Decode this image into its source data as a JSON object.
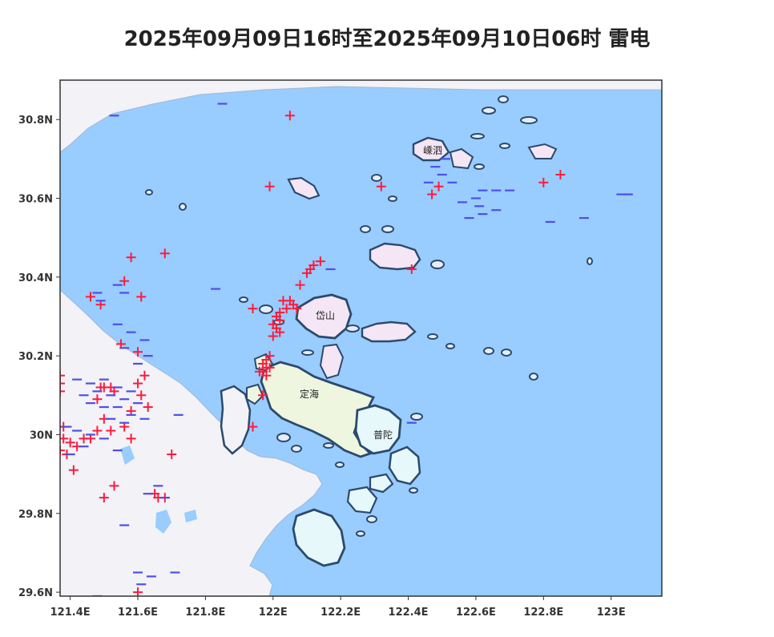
{
  "title": "2025年09月09日16时至2025年09月10日06时 雷电",
  "x_ticks": [
    "121.4E",
    "121.6E",
    "121.8E",
    "122E",
    "122.2E",
    "122.4E",
    "122.6E",
    "122.8E",
    "123E"
  ],
  "y_ticks": [
    "30.8N",
    "30.6N",
    "30.4N",
    "30.2N",
    "30N",
    "29.8N",
    "29.6N"
  ],
  "places": [
    "嵊泗",
    "岱山",
    "定海",
    "普陀"
  ],
  "colors": {
    "sea": "#99ccff",
    "land": "#f2f2f7",
    "island_daishan": "#f5e6f5",
    "island_zhoushan": "#eef6e0",
    "island_putuo": "#e6f8fa",
    "coast": "#2c4a6b",
    "positive_strike": "#ff1a3c",
    "negative_strike": "#4f4fe6"
  },
  "chart_data": {
    "type": "scatter",
    "title": "2025年09月09日16时至2025年09月10日06时 雷电",
    "xlim": [
      121.37,
      123.15
    ],
    "ylim": [
      29.59,
      30.9
    ],
    "series": [
      {
        "marker": "plus",
        "points": [
          [
            122.05,
            30.81
          ],
          [
            121.99,
            30.63
          ],
          [
            122.32,
            30.63
          ],
          [
            122.47,
            30.61
          ],
          [
            122.49,
            30.63
          ],
          [
            122.8,
            30.64
          ],
          [
            122.85,
            30.66
          ],
          [
            121.68,
            30.46
          ],
          [
            121.58,
            30.45
          ],
          [
            121.56,
            30.39
          ],
          [
            121.61,
            30.35
          ],
          [
            121.46,
            30.35
          ],
          [
            121.49,
            30.33
          ],
          [
            121.94,
            30.32
          ],
          [
            121.97,
            30.1
          ],
          [
            122.41,
            30.42
          ],
          [
            122.14,
            30.44
          ],
          [
            122.11,
            30.42
          ],
          [
            122.1,
            30.41
          ],
          [
            122.12,
            30.43
          ],
          [
            122.08,
            30.38
          ],
          [
            122.05,
            30.34
          ],
          [
            122.06,
            30.33
          ],
          [
            122.07,
            30.32
          ],
          [
            122.04,
            30.32
          ],
          [
            122.03,
            30.34
          ],
          [
            122.02,
            30.31
          ],
          [
            122.01,
            30.3
          ],
          [
            122.02,
            30.29
          ],
          [
            122.0,
            30.28
          ],
          [
            122.01,
            30.27
          ],
          [
            122.02,
            30.26
          ],
          [
            122.0,
            30.25
          ],
          [
            121.99,
            30.2
          ],
          [
            121.98,
            30.19
          ],
          [
            121.97,
            30.18
          ],
          [
            121.98,
            30.17
          ],
          [
            121.99,
            30.17
          ],
          [
            121.96,
            30.16
          ],
          [
            121.97,
            30.16
          ],
          [
            121.98,
            30.15
          ],
          [
            121.55,
            30.23
          ],
          [
            121.6,
            30.21
          ],
          [
            121.37,
            30.15
          ],
          [
            121.37,
            30.13
          ],
          [
            121.37,
            30.11
          ],
          [
            121.62,
            30.15
          ],
          [
            121.6,
            30.13
          ],
          [
            121.61,
            30.1
          ],
          [
            121.63,
            30.07
          ],
          [
            121.58,
            30.06
          ],
          [
            121.49,
            30.12
          ],
          [
            121.5,
            30.12
          ],
          [
            121.52,
            30.12
          ],
          [
            121.53,
            30.11
          ],
          [
            121.48,
            30.09
          ],
          [
            121.36,
            30.02
          ],
          [
            121.38,
            30.02
          ],
          [
            121.48,
            30.01
          ],
          [
            121.5,
            30.04
          ],
          [
            121.52,
            30.01
          ],
          [
            121.56,
            30.02
          ],
          [
            121.58,
            29.99
          ],
          [
            121.38,
            29.99
          ],
          [
            121.4,
            29.98
          ],
          [
            121.42,
            29.97
          ],
          [
            121.44,
            29.99
          ],
          [
            121.46,
            29.99
          ],
          [
            121.37,
            29.96
          ],
          [
            121.39,
            29.95
          ],
          [
            121.7,
            29.95
          ],
          [
            121.41,
            29.91
          ],
          [
            121.53,
            29.87
          ],
          [
            121.5,
            29.84
          ],
          [
            121.65,
            29.85
          ],
          [
            121.66,
            29.84
          ],
          [
            121.68,
            29.84
          ],
          [
            121.6,
            29.6
          ],
          [
            121.94,
            30.02
          ]
        ]
      },
      {
        "marker": "minus",
        "points": [
          [
            121.85,
            30.84
          ],
          [
            121.53,
            30.81
          ],
          [
            122.51,
            30.7
          ],
          [
            122.48,
            30.68
          ],
          [
            122.5,
            30.66
          ],
          [
            122.46,
            30.64
          ],
          [
            122.53,
            30.64
          ],
          [
            122.62,
            30.62
          ],
          [
            122.66,
            30.62
          ],
          [
            122.6,
            30.6
          ],
          [
            122.7,
            30.62
          ],
          [
            122.56,
            30.59
          ],
          [
            122.61,
            30.58
          ],
          [
            122.66,
            30.57
          ],
          [
            122.58,
            30.55
          ],
          [
            122.62,
            30.56
          ],
          [
            122.82,
            30.54
          ],
          [
            123.03,
            30.61
          ],
          [
            123.05,
            30.61
          ],
          [
            122.92,
            30.55
          ],
          [
            122.17,
            30.42
          ],
          [
            121.83,
            30.37
          ],
          [
            121.54,
            30.38
          ],
          [
            121.56,
            30.36
          ],
          [
            121.48,
            30.36
          ],
          [
            121.49,
            30.34
          ],
          [
            121.54,
            30.28
          ],
          [
            121.58,
            30.26
          ],
          [
            121.62,
            30.24
          ],
          [
            121.56,
            30.22
          ],
          [
            121.63,
            30.2
          ],
          [
            121.6,
            30.18
          ],
          [
            121.42,
            30.14
          ],
          [
            121.46,
            30.13
          ],
          [
            121.5,
            30.14
          ],
          [
            121.54,
            30.12
          ],
          [
            121.58,
            30.11
          ],
          [
            121.44,
            30.1
          ],
          [
            121.48,
            30.11
          ],
          [
            121.52,
            30.1
          ],
          [
            121.56,
            30.09
          ],
          [
            121.6,
            30.08
          ],
          [
            121.46,
            30.08
          ],
          [
            121.5,
            30.07
          ],
          [
            121.54,
            30.07
          ],
          [
            121.58,
            30.05
          ],
          [
            121.62,
            30.04
          ],
          [
            121.52,
            30.04
          ],
          [
            121.56,
            30.03
          ],
          [
            121.39,
            30.02
          ],
          [
            121.42,
            30.01
          ],
          [
            121.46,
            30.0
          ],
          [
            121.5,
            29.99
          ],
          [
            121.44,
            29.97
          ],
          [
            121.4,
            29.95
          ],
          [
            121.54,
            29.96
          ],
          [
            121.66,
            29.87
          ],
          [
            121.63,
            29.85
          ],
          [
            121.68,
            29.84
          ],
          [
            121.56,
            29.77
          ],
          [
            121.6,
            29.65
          ],
          [
            121.64,
            29.64
          ],
          [
            121.71,
            29.65
          ],
          [
            121.61,
            29.62
          ],
          [
            121.48,
            29.59
          ],
          [
            122.41,
            30.03
          ],
          [
            121.72,
            30.05
          ]
        ]
      }
    ]
  }
}
